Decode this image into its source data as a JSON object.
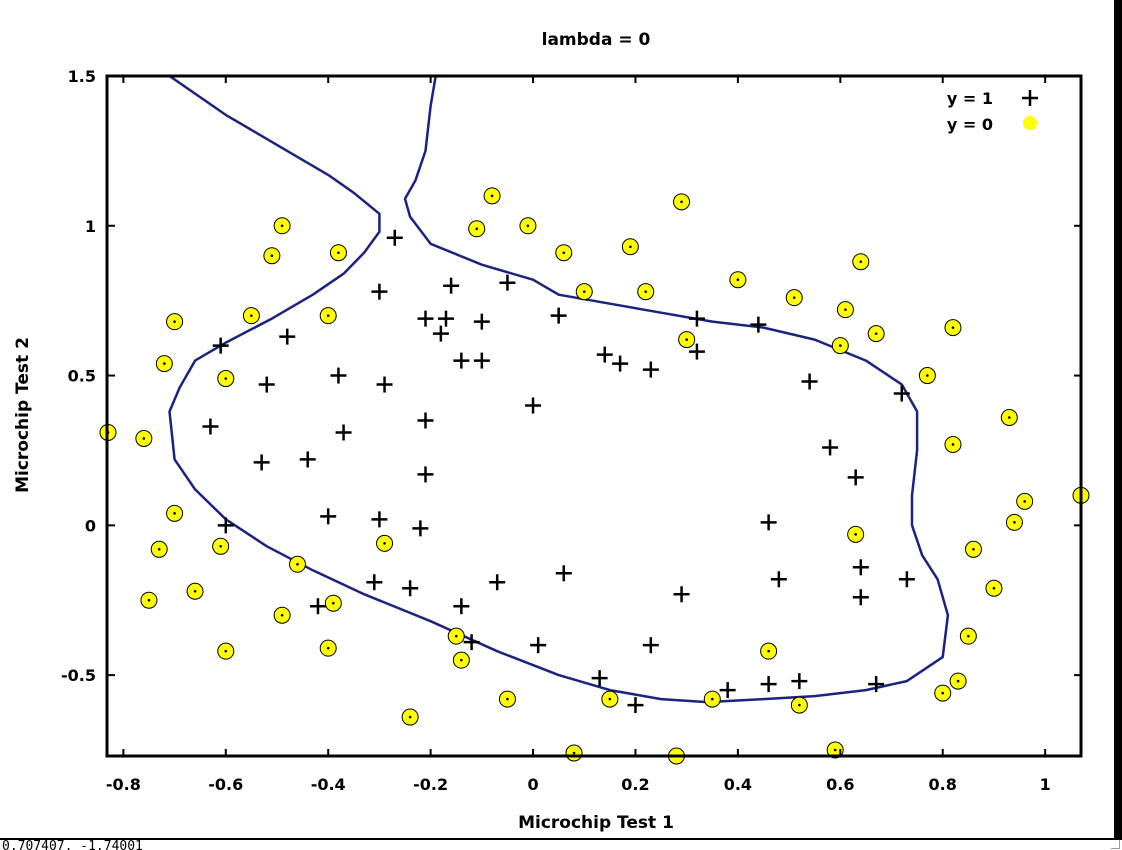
{
  "window": {
    "status_text": "0.707407, -1.74001"
  },
  "colors": {
    "boundary": "#1a237e",
    "plus": "#000000",
    "circle_fill": "#ffff00",
    "circle_stroke": "#000000",
    "axis": "#000000"
  },
  "chart_data": {
    "type": "scatter",
    "title": "lambda = 0",
    "xlabel": "Microchip Test 1",
    "ylabel": "Microchip Test 2",
    "xlim": [
      -0.83,
      1.07
    ],
    "ylim": [
      -0.77,
      1.5
    ],
    "xticks": [
      -0.8,
      -0.6,
      -0.4,
      -0.2,
      0,
      0.2,
      0.4,
      0.6,
      0.8,
      1
    ],
    "xtick_labels": [
      "-0.8",
      "-0.6",
      "-0.4",
      "-0.2",
      "0",
      "0.2",
      "0.4",
      "0.6",
      "0.8",
      "1"
    ],
    "yticks": [
      -0.5,
      0,
      0.5,
      1,
      1.5
    ],
    "ytick_labels": [
      "-0.5",
      "0",
      "0.5",
      "1",
      "1.5"
    ],
    "grid": false,
    "legend_position": "top-right",
    "series": [
      {
        "name": "y = 1",
        "marker": "plus",
        "points": [
          [
            -0.27,
            0.96
          ],
          [
            -0.3,
            0.78
          ],
          [
            -0.16,
            0.8
          ],
          [
            -0.05,
            0.81
          ],
          [
            -0.21,
            0.69
          ],
          [
            -0.17,
            0.69
          ],
          [
            -0.1,
            0.68
          ],
          [
            -0.18,
            0.64
          ],
          [
            -0.14,
            0.55
          ],
          [
            -0.1,
            0.55
          ],
          [
            0.05,
            0.7
          ],
          [
            0.14,
            0.57
          ],
          [
            0.17,
            0.54
          ],
          [
            0.23,
            0.52
          ],
          [
            0.32,
            0.69
          ],
          [
            0.32,
            0.58
          ],
          [
            0.44,
            0.67
          ],
          [
            0.54,
            0.48
          ],
          [
            -0.61,
            0.6
          ],
          [
            -0.48,
            0.63
          ],
          [
            -0.52,
            0.47
          ],
          [
            -0.38,
            0.5
          ],
          [
            -0.29,
            0.47
          ],
          [
            -0.21,
            0.35
          ],
          [
            -0.37,
            0.31
          ],
          [
            0.0,
            0.4
          ],
          [
            -0.63,
            0.33
          ],
          [
            -0.53,
            0.21
          ],
          [
            -0.44,
            0.22
          ],
          [
            -0.21,
            0.17
          ],
          [
            -0.6,
            0.0
          ],
          [
            -0.4,
            0.03
          ],
          [
            -0.3,
            0.02
          ],
          [
            -0.22,
            -0.01
          ],
          [
            0.58,
            0.26
          ],
          [
            0.63,
            0.16
          ],
          [
            0.72,
            0.44
          ],
          [
            0.46,
            0.01
          ],
          [
            -0.31,
            -0.19
          ],
          [
            -0.24,
            -0.21
          ],
          [
            -0.07,
            -0.19
          ],
          [
            0.06,
            -0.16
          ],
          [
            -0.42,
            -0.27
          ],
          [
            -0.14,
            -0.27
          ],
          [
            -0.12,
            -0.39
          ],
          [
            0.01,
            -0.4
          ],
          [
            0.23,
            -0.4
          ],
          [
            0.29,
            -0.23
          ],
          [
            0.48,
            -0.18
          ],
          [
            0.64,
            -0.14
          ],
          [
            0.64,
            -0.24
          ],
          [
            0.73,
            -0.18
          ],
          [
            0.13,
            -0.51
          ],
          [
            0.2,
            -0.6
          ],
          [
            0.38,
            -0.55
          ],
          [
            0.46,
            -0.53
          ],
          [
            0.52,
            -0.52
          ],
          [
            0.67,
            -0.53
          ]
        ]
      },
      {
        "name": "y = 0",
        "marker": "circle",
        "points": [
          [
            -0.83,
            0.31
          ],
          [
            -0.76,
            0.29
          ],
          [
            -0.72,
            0.54
          ],
          [
            -0.7,
            0.68
          ],
          [
            -0.6,
            0.49
          ],
          [
            -0.55,
            0.7
          ],
          [
            -0.51,
            0.9
          ],
          [
            -0.49,
            1.0
          ],
          [
            -0.4,
            0.7
          ],
          [
            -0.38,
            0.91
          ],
          [
            -0.11,
            0.99
          ],
          [
            -0.08,
            1.1
          ],
          [
            -0.01,
            1.0
          ],
          [
            0.06,
            0.91
          ],
          [
            0.1,
            0.78
          ],
          [
            0.19,
            0.93
          ],
          [
            0.22,
            0.78
          ],
          [
            0.29,
            1.08
          ],
          [
            0.3,
            0.62
          ],
          [
            0.4,
            0.82
          ],
          [
            0.51,
            0.76
          ],
          [
            0.6,
            0.6
          ],
          [
            0.61,
            0.72
          ],
          [
            0.64,
            0.88
          ],
          [
            0.67,
            0.64
          ],
          [
            0.77,
            0.5
          ],
          [
            0.82,
            0.66
          ],
          [
            0.82,
            0.27
          ],
          [
            0.93,
            0.36
          ],
          [
            0.94,
            0.01
          ],
          [
            0.96,
            0.08
          ],
          [
            1.07,
            0.1
          ],
          [
            0.86,
            -0.08
          ],
          [
            0.9,
            -0.21
          ],
          [
            0.85,
            -0.37
          ],
          [
            0.83,
            -0.52
          ],
          [
            0.8,
            -0.56
          ],
          [
            0.63,
            -0.03
          ],
          [
            0.46,
            -0.42
          ],
          [
            0.52,
            -0.6
          ],
          [
            0.59,
            -0.75
          ],
          [
            0.35,
            -0.58
          ],
          [
            0.15,
            -0.58
          ],
          [
            0.28,
            -0.77
          ],
          [
            0.08,
            -0.76
          ],
          [
            -0.05,
            -0.58
          ],
          [
            -0.24,
            -0.64
          ],
          [
            -0.14,
            -0.45
          ],
          [
            -0.15,
            -0.37
          ],
          [
            -0.29,
            -0.06
          ],
          [
            -0.39,
            -0.26
          ],
          [
            -0.4,
            -0.41
          ],
          [
            -0.46,
            -0.13
          ],
          [
            -0.49,
            -0.3
          ],
          [
            -0.6,
            -0.42
          ],
          [
            -0.61,
            -0.07
          ],
          [
            -0.66,
            -0.22
          ],
          [
            -0.7,
            0.04
          ],
          [
            -0.73,
            -0.08
          ],
          [
            -0.75,
            -0.25
          ]
        ]
      }
    ],
    "decision_boundary": [
      [
        [
          -0.71,
          1.5
        ],
        [
          -0.6,
          1.37
        ],
        [
          -0.49,
          1.26
        ],
        [
          -0.4,
          1.17
        ],
        [
          -0.35,
          1.11
        ],
        [
          -0.3,
          1.04
        ],
        [
          -0.3,
          0.98
        ],
        [
          -0.33,
          0.91
        ],
        [
          -0.37,
          0.84
        ],
        [
          -0.43,
          0.77
        ],
        [
          -0.51,
          0.69
        ],
        [
          -0.6,
          0.61
        ],
        [
          -0.66,
          0.55
        ],
        [
          -0.69,
          0.46
        ],
        [
          -0.71,
          0.38
        ],
        [
          -0.7,
          0.22
        ],
        [
          -0.66,
          0.12
        ],
        [
          -0.6,
          0.02
        ],
        [
          -0.52,
          -0.07
        ],
        [
          -0.43,
          -0.15
        ],
        [
          -0.33,
          -0.23
        ],
        [
          -0.2,
          -0.32
        ],
        [
          -0.07,
          -0.42
        ],
        [
          0.05,
          -0.5
        ],
        [
          0.15,
          -0.55
        ],
        [
          0.25,
          -0.58
        ],
        [
          0.34,
          -0.59
        ],
        [
          0.45,
          -0.58
        ],
        [
          0.55,
          -0.57
        ],
        [
          0.65,
          -0.55
        ],
        [
          0.73,
          -0.52
        ],
        [
          0.8,
          -0.44
        ],
        [
          0.81,
          -0.3
        ],
        [
          0.79,
          -0.18
        ],
        [
          0.76,
          -0.1
        ],
        [
          0.74,
          0.0
        ],
        [
          0.74,
          0.1
        ],
        [
          0.75,
          0.25
        ],
        [
          0.75,
          0.38
        ],
        [
          0.72,
          0.47
        ],
        [
          0.65,
          0.55
        ],
        [
          0.55,
          0.62
        ],
        [
          0.45,
          0.66
        ],
        [
          0.35,
          0.68
        ],
        [
          0.25,
          0.71
        ],
        [
          0.15,
          0.74
        ],
        [
          0.05,
          0.77
        ],
        [
          0.0,
          0.82
        ],
        [
          -0.1,
          0.87
        ],
        [
          -0.2,
          0.94
        ],
        [
          -0.24,
          1.03
        ],
        [
          -0.25,
          1.09
        ],
        [
          -0.23,
          1.15
        ],
        [
          -0.21,
          1.25
        ],
        [
          -0.2,
          1.4
        ],
        [
          -0.19,
          1.5
        ]
      ]
    ]
  }
}
